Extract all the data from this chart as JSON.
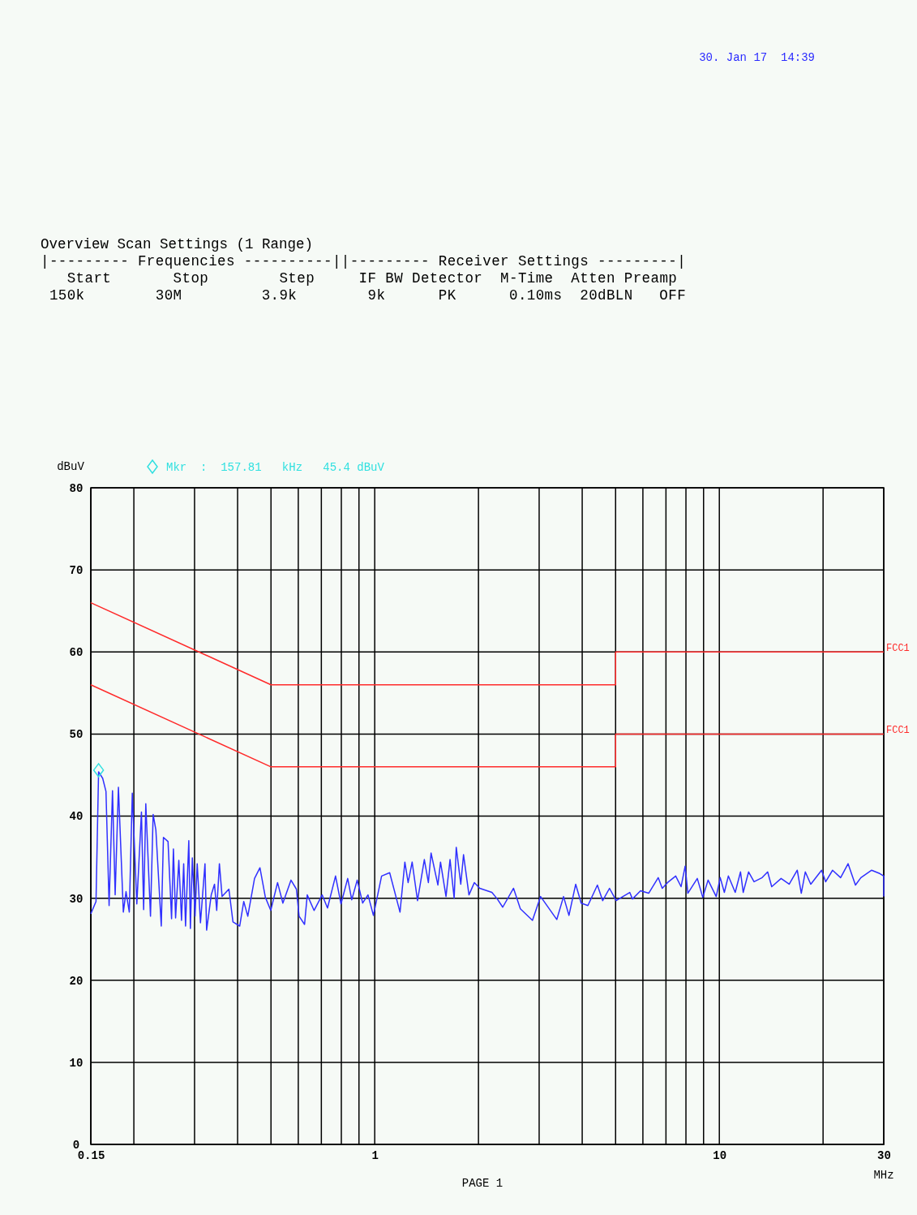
{
  "chart_data": {
    "type": "line",
    "xlabel": "MHz",
    "ylabel": "dBuV",
    "log": "x",
    "grid": true,
    "marker": "none",
    "line_style": "solid",
    "xlim": [
      0.15,
      30
    ],
    "ylim": [
      0,
      80
    ],
    "xticks": [
      0.15,
      {
        "value": 0.2,
        "label": null
      },
      {
        "value": 0.3,
        "label": null
      },
      {
        "value": 0.4,
        "label": null
      },
      {
        "value": 0.5,
        "label": null
      },
      {
        "value": 0.6,
        "label": null
      },
      {
        "value": 0.7,
        "label": null
      },
      {
        "value": 0.8,
        "label": null
      },
      {
        "value": 0.9,
        "label": null
      },
      1,
      {
        "value": 2,
        "label": null
      },
      {
        "value": 3,
        "label": null
      },
      {
        "value": 4,
        "label": null
      },
      {
        "value": 5,
        "label": null
      },
      {
        "value": 6,
        "label": null
      },
      {
        "value": 7,
        "label": null
      },
      {
        "value": 8,
        "label": null
      },
      {
        "value": 9,
        "label": null
      },
      10,
      {
        "value": 20,
        "label": null
      },
      30
    ],
    "yticks": [
      0,
      10,
      20,
      30,
      40,
      50,
      60,
      70,
      80
    ],
    "series": [
      {
        "name": "FCC1",
        "color": "#ff2a2a",
        "x": [
          0.15,
          0.5,
          5,
          5,
          30
        ],
        "values": [
          66,
          56,
          56,
          60,
          60
        ]
      },
      {
        "name": "FCC1",
        "color": "#ff2a2a",
        "x": [
          0.15,
          0.5,
          5,
          5,
          30
        ],
        "values": [
          56,
          46,
          46,
          50,
          50
        ]
      },
      {
        "color": "#3030ff",
        "x": [
          0.15,
          0.1553,
          0.158,
          0.1624,
          0.166,
          0.1695,
          0.1734,
          0.1765,
          0.1804,
          0.1864,
          0.1898,
          0.194,
          0.1979,
          0.204,
          0.2104,
          0.2135,
          0.2166,
          0.2235,
          0.2275,
          0.2317,
          0.2402,
          0.2437,
          0.2513,
          0.2573,
          0.2605,
          0.2643,
          0.2701,
          0.275,
          0.279,
          0.2825,
          0.2887,
          0.2918,
          0.2956,
          0.301,
          0.3054,
          0.3121,
          0.3217,
          0.3252,
          0.3354,
          0.3428,
          0.3479,
          0.3542,
          0.3606,
          0.3774,
          0.3878,
          0.4056,
          0.4168,
          0.4282,
          0.4479,
          0.4644,
          0.4816,
          0.4992,
          0.5224,
          0.5413,
          0.5714,
          0.5925,
          0.6033,
          0.6257,
          0.637,
          0.6667,
          0.7037,
          0.7294,
          0.7696,
          0.7981,
          0.8347,
          0.8577,
          0.8895,
          0.9224,
          0.956,
          0.9912,
          1.047,
          1.105,
          1.184,
          1.223,
          1.25,
          1.284,
          1.331,
          1.393,
          1.431,
          1.457,
          1.525,
          1.552,
          1.61,
          1.654,
          1.7,
          1.724,
          1.777,
          1.81,
          1.877,
          1.946,
          2.018,
          2.188,
          2.268,
          2.352,
          2.528,
          2.646,
          2.869,
          3.029,
          3.375,
          3.531,
          3.661,
          3.83,
          3.972,
          4.155,
          4.427,
          4.587,
          4.8,
          5.02,
          5.496,
          5.596,
          5.907,
          6.237,
          6.647,
          6.828,
          7.076,
          7.47,
          7.745,
          7.958,
          8.102,
          8.631,
          8.952,
          9.276,
          9.792,
          10.06,
          10.34,
          10.62,
          11.12,
          11.52,
          11.73,
          12.16,
          12.61,
          13.31,
          13.81,
          14.19,
          15.11,
          15.95,
          16.83,
          17.29,
          17.76,
          18.42,
          19.8,
          20.35,
          21.31,
          22.49,
          23.64,
          24.83,
          25.75,
          27.67,
          29.21,
          30,
          30
        ],
        "values": [
          28.1,
          29.6,
          45.4,
          44.6,
          43.0,
          29.1,
          43.1,
          30.4,
          43.5,
          28.3,
          30.8,
          28.3,
          42.8,
          29.3,
          40.5,
          28.6,
          41.5,
          27.8,
          40.2,
          38.3,
          26.6,
          37.4,
          36.9,
          27.5,
          36.0,
          27.6,
          34.6,
          27.3,
          34.2,
          26.6,
          37.0,
          26.3,
          34.9,
          27.8,
          34.2,
          27.0,
          34.2,
          26.1,
          30.4,
          31.7,
          28.5,
          34.2,
          30.2,
          31.1,
          27.1,
          26.6,
          29.6,
          27.8,
          32.4,
          33.7,
          30.1,
          28.5,
          31.9,
          29.4,
          32.2,
          31.1,
          27.8,
          26.8,
          30.4,
          28.5,
          30.4,
          28.8,
          32.7,
          29.3,
          32.4,
          29.8,
          32.2,
          29.4,
          30.4,
          27.9,
          32.7,
          33.1,
          28.3,
          34.4,
          31.9,
          34.4,
          29.7,
          34.7,
          31.9,
          35.5,
          31.6,
          34.4,
          30.2,
          34.7,
          30.0,
          36.2,
          31.7,
          35.3,
          30.4,
          31.9,
          31.2,
          30.7,
          29.9,
          28.9,
          31.2,
          28.7,
          27.3,
          30.2,
          27.4,
          30.2,
          27.9,
          31.7,
          29.4,
          29.1,
          31.6,
          29.7,
          31.2,
          29.7,
          30.7,
          29.9,
          30.9,
          30.6,
          32.5,
          31.2,
          31.9,
          32.7,
          31.4,
          33.9,
          30.6,
          32.4,
          30.1,
          32.2,
          30.2,
          32.5,
          30.7,
          32.7,
          30.7,
          33.2,
          30.7,
          33.2,
          32.0,
          32.5,
          33.2,
          31.4,
          32.4,
          31.7,
          33.4,
          30.6,
          33.2,
          31.7,
          33.4,
          32.0,
          33.4,
          32.5,
          34.2,
          31.6,
          32.5,
          33.4,
          33.0,
          32.7,
          30.2
        ]
      }
    ],
    "annotations": [
      "30. Jan 17  14:39",
      "Overview Scan Settings (1 Range)",
      "|--------- Frequencies ----------||--------- Receiver Settings ---------|",
      "   Start       Stop        Step     IF BW Detector  M-Time  Atten Preamp",
      " 150k        30M         3.9k        9k      PK      0.10ms  20dBLN   OFF",
      "Mkr  :  157.81   kHz   45.4 dBuV",
      "PAGE 1"
    ]
  }
}
